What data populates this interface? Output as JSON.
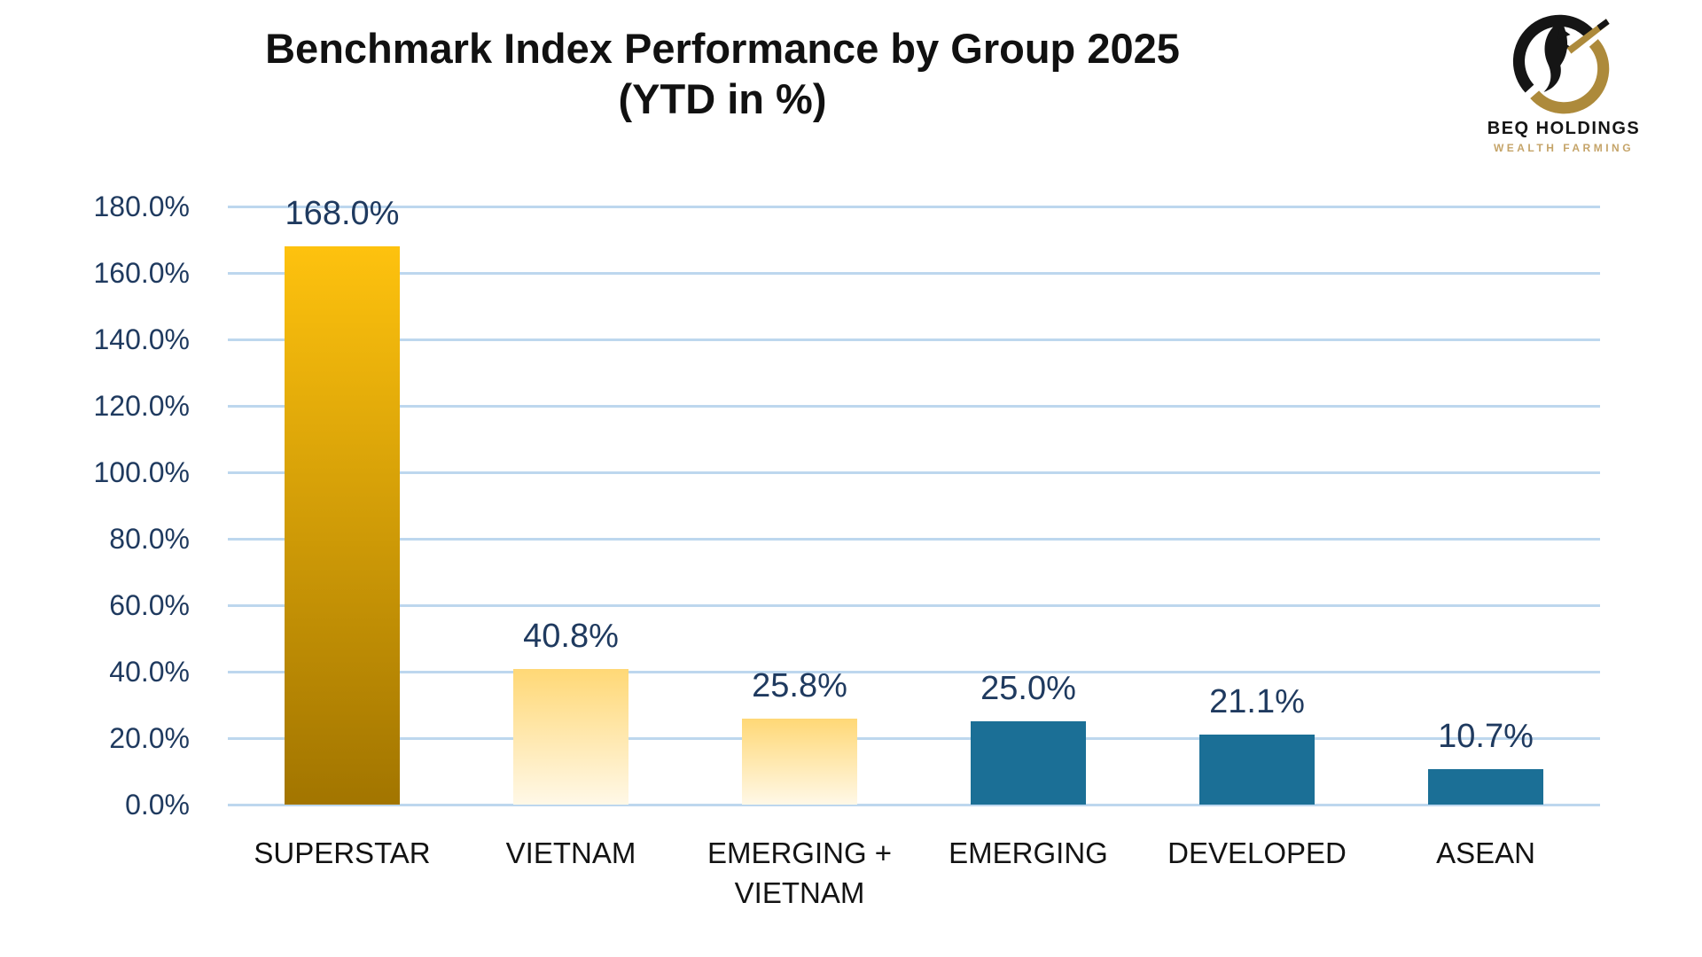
{
  "logo": {
    "company": "BEQ HOLDINGS",
    "tagline": "WEALTH FARMING",
    "colors": {
      "black": "#151515",
      "gold": "#AD8A3B",
      "tagline_gold": "#C5A469"
    }
  },
  "chart_data": {
    "type": "bar",
    "title": "Benchmark Index Performance by Group 2025",
    "subtitle": "(YTD in %)",
    "categories": [
      "SUPERSTAR",
      "VIETNAM",
      "EMERGING + VIETNAM",
      "EMERGING",
      "DEVELOPED",
      "ASEAN"
    ],
    "values": [
      168.0,
      40.8,
      25.8,
      25.0,
      21.1,
      10.7
    ],
    "value_labels": [
      "168.0%",
      "40.8%",
      "25.8%",
      "25.0%",
      "21.1%",
      "10.7%"
    ],
    "ylim": [
      0,
      180
    ],
    "ytick_step": 20,
    "ytick_labels": [
      "0.0%",
      "20.0%",
      "40.0%",
      "60.0%",
      "80.0%",
      "100.0%",
      "120.0%",
      "140.0%",
      "160.0%",
      "180.0%"
    ],
    "grid": true,
    "legend_position": "none",
    "bar_styles": [
      "gold-gradient",
      "light-gold-gradient",
      "light-gold-gradient",
      "solid-blue",
      "solid-blue",
      "solid-blue"
    ],
    "colors": {
      "grid": "#BDD7EE",
      "axis_text": "#1F3A5F",
      "data_label_text": "#1F3A5F",
      "category_text": "#131313",
      "bar_blue": "#1B6F96",
      "gold_top": "#FEC20E",
      "gold_bottom": "#A27500",
      "light_gold_top": "#FFD876",
      "light_gold_bottom": "#FFF8E7"
    }
  }
}
